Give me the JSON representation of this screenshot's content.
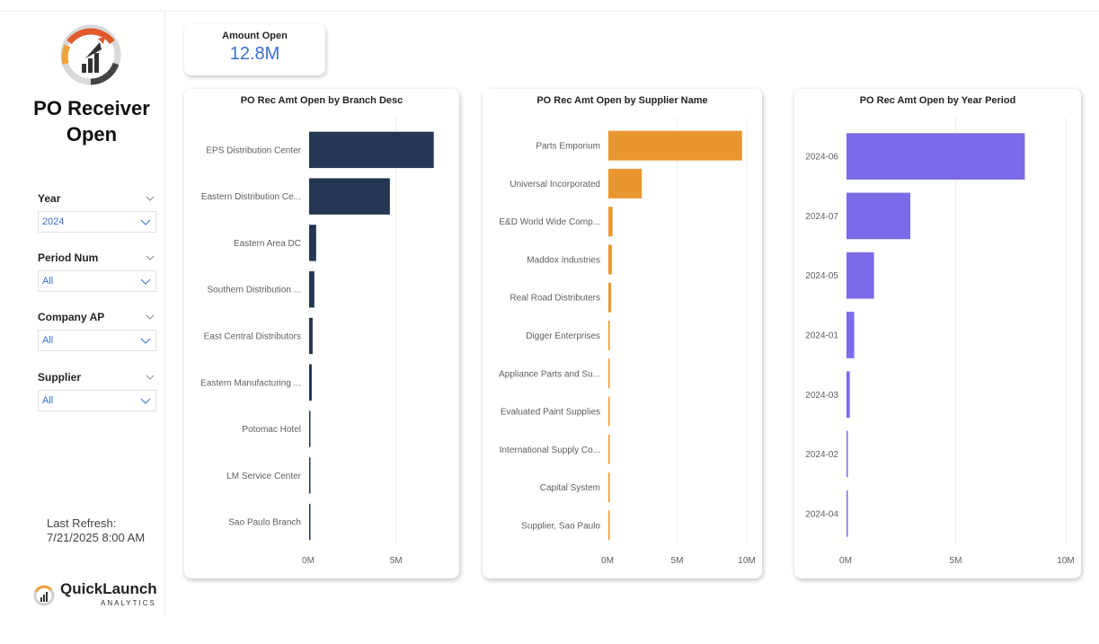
{
  "app": {
    "title": "PO Receiver Open"
  },
  "filters": [
    {
      "label": "Year",
      "value": "2024"
    },
    {
      "label": "Period Num",
      "value": "All"
    },
    {
      "label": "Company AP",
      "value": "All"
    },
    {
      "label": "Supplier",
      "value": "All"
    }
  ],
  "refresh": {
    "line1": "Last Refresh:",
    "line2": "7/21/2025 8:00 AM"
  },
  "brand": {
    "name": "QuickLaunch",
    "sub": "ANALYTICS"
  },
  "kpi": {
    "label": "Amount Open",
    "value": "12.8M"
  },
  "colors": {
    "accent": "#3a6fc9",
    "branch": "#253652",
    "supplier": "#e8962f",
    "period": "#7b6be8"
  },
  "chart_data": [
    {
      "type": "bar",
      "orientation": "horizontal",
      "title": "PO Rec Amt Open by Branch Desc",
      "categories": [
        "EPS Distribution Center",
        "Eastern Distribution Ce...",
        "Eastern Area DC",
        "Southern Distribution ...",
        "East Central Distributors",
        "Eastern Manufacturing ...",
        "Potomac Hotel",
        "LM Service Center",
        "Sao Paulo Branch"
      ],
      "values": [
        7.1,
        4.6,
        0.4,
        0.3,
        0.2,
        0.15,
        0.05,
        0.04,
        0.03
      ],
      "xticks": [
        "0M",
        "5M"
      ],
      "xticks_values": [
        0,
        5
      ],
      "xlim": [
        0,
        8.6
      ],
      "color": "#253652"
    },
    {
      "type": "bar",
      "orientation": "horizontal",
      "title": "PO Rec Amt Open by Supplier Name",
      "categories": [
        "Parts Emporium",
        "Universal Incorporated",
        "E&D World Wide Comp...",
        "Maddox Industries",
        "Real Road Distributers",
        "Digger Enterprises",
        "Appliance Parts and Su...",
        "Evaluated Paint Supplies",
        "International Supply Co...",
        "Capital System",
        "Supplier, Sao Paulo"
      ],
      "values": [
        9.6,
        2.4,
        0.3,
        0.25,
        0.2,
        0.1,
        0.08,
        0.06,
        0.05,
        0.04,
        0.03
      ],
      "xticks": [
        "0M",
        "5M",
        "10M"
      ],
      "xticks_values": [
        0,
        5,
        10
      ],
      "xlim": [
        0,
        10
      ],
      "color": "#e8962f"
    },
    {
      "type": "bar",
      "orientation": "horizontal",
      "title": "PO Rec Amt Open by Year Period",
      "categories": [
        "2024-06",
        "2024-07",
        "2024-05",
        "2024-01",
        "2024-03",
        "2024-02",
        "2024-04"
      ],
      "values": [
        8.1,
        2.9,
        1.25,
        0.35,
        0.15,
        0.05,
        0.03
      ],
      "xticks": [
        "0M",
        "5M",
        "10M"
      ],
      "xticks_values": [
        0,
        5,
        10
      ],
      "xlim": [
        0,
        10
      ],
      "color": "#7b6be8"
    }
  ]
}
